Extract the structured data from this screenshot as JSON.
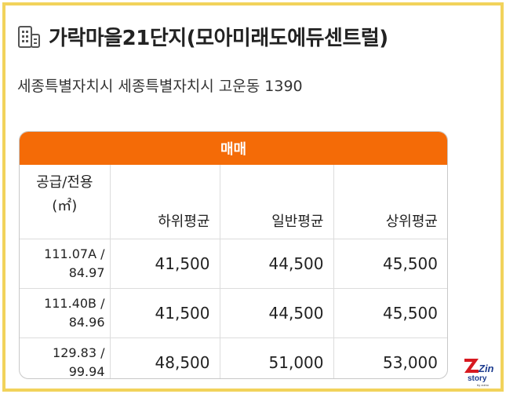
{
  "header": {
    "title": "가락마을21단지(모아미래도에듀센트럴)",
    "address": "세종특별자치시 세종특별자치시 고운동 1390",
    "icon": "building-icon"
  },
  "table": {
    "section_label": "매매",
    "columns": {
      "area_line1": "공급/전용",
      "area_line2": "(㎡)",
      "low": "하위평균",
      "mid": "일반평균",
      "high": "상위평균"
    },
    "rows": [
      {
        "supply": "111.07A /",
        "exclusive": "84.97",
        "low": "41,500",
        "mid": "44,500",
        "high": "45,500"
      },
      {
        "supply": "111.40B /",
        "exclusive": "84.96",
        "low": "41,500",
        "mid": "44,500",
        "high": "45,500"
      },
      {
        "supply": "129.83 /",
        "exclusive": "99.94",
        "low": "48,500",
        "mid": "51,000",
        "high": "53,000"
      }
    ]
  },
  "watermark": {
    "brand": "Zin",
    "sub": "story",
    "tiny": "by zoino",
    "colors": {
      "red": "#d71920",
      "blue": "#1d3c8f"
    }
  },
  "colors": {
    "accent_orange": "#f46b07",
    "frame_yellow": "#f2d35b"
  }
}
